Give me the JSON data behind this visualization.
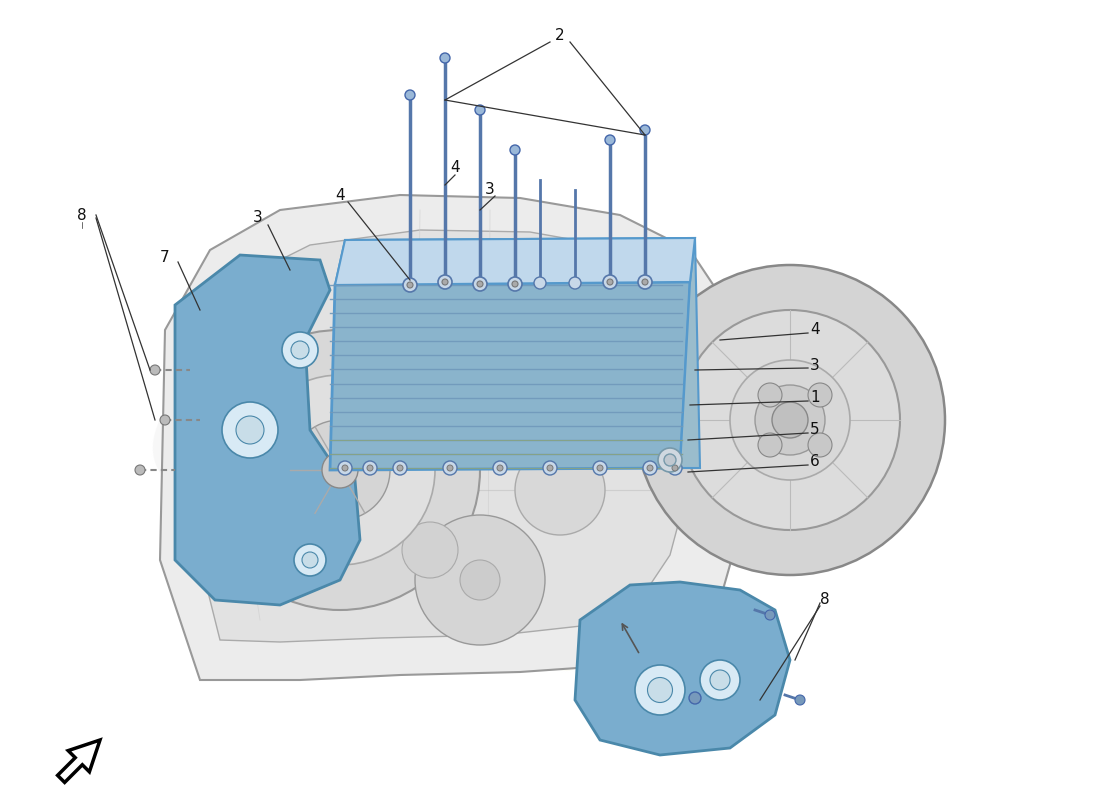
{
  "fig_width": 11.0,
  "fig_height": 8.0,
  "dpi": 100,
  "bg_color": "#ffffff",
  "radiator_color_light": "#b8d4e8",
  "radiator_color_dark": "#8ab4cc",
  "radiator_top_color": "#c8dde8",
  "bracket_color": "#7aadce",
  "bracket_edge": "#4a88aa",
  "gearbox_fill": "#e8e8e8",
  "gearbox_edge": "#888888",
  "gearbox_inner": "#d4d4d4",
  "clutch_fill": "#d0d0d0",
  "clutch_edge": "#888888",
  "bolt_color": "#4a6a9a",
  "stud_color": "#5577aa",
  "line_color": "#333333",
  "label_color": "#111111",
  "wm_color1": "#eeeeee",
  "wm_color2": "#f8f8e8",
  "label_fontsize": 11
}
